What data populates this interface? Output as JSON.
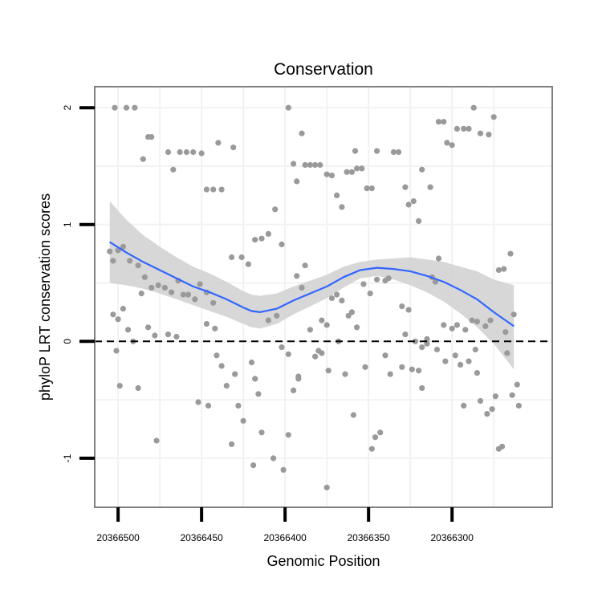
{
  "chart_data": {
    "type": "scatter",
    "title": "Conservation",
    "xlabel": "Genomic Position",
    "ylabel": "phyloP LRT conservation scores",
    "x_reversed": true,
    "xlim": [
      20366514,
      20366240
    ],
    "ylim": [
      -1.42,
      2.18
    ],
    "x_ticks": [
      20366500,
      20366450,
      20366400,
      20366350,
      20366300
    ],
    "x_tick_labels": [
      "20366500",
      "20366450",
      "20366400",
      "20366350",
      "20366300"
    ],
    "y_ticks": [
      -1,
      0,
      1,
      2
    ],
    "y_tick_labels": [
      "-1",
      "0",
      "1",
      "2"
    ],
    "reference_line": {
      "y": 0,
      "style": "dashed",
      "color": "#000000"
    },
    "grid": true,
    "colors": {
      "points": "#9a9a9a",
      "smooth_line": "#3366ff",
      "ribbon": "#d3d3d3",
      "panel_border": "#808080",
      "grid": "#f2f2f2"
    },
    "series": [
      {
        "kind": "points",
        "points": [
          [
            20366505,
            0.77
          ],
          [
            20366503,
            0.69
          ],
          [
            20366500,
            0.78
          ],
          [
            20366497,
            0.81
          ],
          [
            20366493,
            0.69
          ],
          [
            20366488,
            0.65
          ],
          [
            20366484,
            0.55
          ],
          [
            20366480,
            0.46
          ],
          [
            20366476,
            0.48
          ],
          [
            20366472,
            0.46
          ],
          [
            20366468,
            0.42
          ],
          [
            20366464,
            0.52
          ],
          [
            20366461,
            0.4
          ],
          [
            20366458,
            0.4
          ],
          [
            20366454,
            0.36
          ],
          [
            20366451,
            0.49
          ],
          [
            20366447,
            0.42
          ],
          [
            20366443,
            0.33
          ],
          [
            20366503,
            0.23
          ],
          [
            20366500,
            0.19
          ],
          [
            20366497,
            0.28
          ],
          [
            20366494,
            0.1
          ],
          [
            20366491,
            0.0
          ],
          [
            20366486,
            0.41
          ],
          [
            20366482,
            0.12
          ],
          [
            20366478,
            0.05
          ],
          [
            20366470,
            0.06
          ],
          [
            20366465,
            0.04
          ],
          [
            20366447,
            0.15
          ],
          [
            20366442,
            0.11
          ],
          [
            20366501,
            -0.08
          ],
          [
            20366499,
            -0.38
          ],
          [
            20366488,
            -0.4
          ],
          [
            20366477,
            -0.85
          ],
          [
            20366452,
            -0.52
          ],
          [
            20366446,
            -0.55
          ],
          [
            20366441,
            -0.12
          ],
          [
            20366438,
            -0.21
          ],
          [
            20366435,
            -0.38
          ],
          [
            20366432,
            -0.88
          ],
          [
            20366430,
            -0.28
          ],
          [
            20366428,
            -0.55
          ],
          [
            20366425,
            -0.68
          ],
          [
            20366420,
            -0.18
          ],
          [
            20366418,
            -0.32
          ],
          [
            20366416,
            -0.45
          ],
          [
            20366502,
            2.0
          ],
          [
            20366495,
            2.0
          ],
          [
            20366490,
            2.0
          ],
          [
            20366485,
            1.56
          ],
          [
            20366482,
            1.75
          ],
          [
            20366480,
            1.75
          ],
          [
            20366470,
            1.62
          ],
          [
            20366467,
            1.47
          ],
          [
            20366463,
            1.62
          ],
          [
            20366459,
            1.62
          ],
          [
            20366455,
            1.62
          ],
          [
            20366450,
            1.61
          ],
          [
            20366447,
            1.3
          ],
          [
            20366443,
            1.3
          ],
          [
            20366440,
            1.7
          ],
          [
            20366438,
            1.3
          ],
          [
            20366431,
            1.66
          ],
          [
            20366432,
            0.72
          ],
          [
            20366426,
            0.72
          ],
          [
            20366422,
            0.66
          ],
          [
            20366418,
            0.87
          ],
          [
            20366414,
            0.88
          ],
          [
            20366410,
            0.92
          ],
          [
            20366406,
            1.13
          ],
          [
            20366402,
            0.83
          ],
          [
            20366410,
            0.18
          ],
          [
            20366405,
            0.22
          ],
          [
            20366402,
            -0.05
          ],
          [
            20366398,
            -0.11
          ],
          [
            20366414,
            -0.78
          ],
          [
            20366419,
            -1.06
          ],
          [
            20366407,
            -1.0
          ],
          [
            20366401,
            -1.1
          ],
          [
            20366398,
            -0.8
          ],
          [
            20366395,
            -0.42
          ],
          [
            20366392,
            -0.32
          ],
          [
            20366398,
            2.0
          ],
          [
            20366395,
            1.52
          ],
          [
            20366393,
            1.37
          ],
          [
            20366390,
            1.78
          ],
          [
            20366388,
            1.51
          ],
          [
            20366385,
            1.51
          ],
          [
            20366382,
            1.51
          ],
          [
            20366379,
            1.51
          ],
          [
            20366375,
            1.43
          ],
          [
            20366372,
            1.42
          ],
          [
            20366369,
            1.25
          ],
          [
            20366366,
            1.15
          ],
          [
            20366363,
            1.45
          ],
          [
            20366360,
            1.45
          ],
          [
            20366357,
            1.48
          ],
          [
            20366354,
            1.48
          ],
          [
            20366351,
            1.31
          ],
          [
            20366348,
            1.31
          ],
          [
            20366345,
            1.63
          ],
          [
            20366358,
            1.63
          ],
          [
            20366390,
            0.46
          ],
          [
            20366393,
            0.56
          ],
          [
            20366388,
            0.65
          ],
          [
            20366385,
            0.1
          ],
          [
            20366380,
            -0.08
          ],
          [
            20366378,
            0.18
          ],
          [
            20366375,
            0.14
          ],
          [
            20366372,
            0.37
          ],
          [
            20366369,
            0.4
          ],
          [
            20366366,
            0.35
          ],
          [
            20366362,
            0.22
          ],
          [
            20366360,
            0.25
          ],
          [
            20366357,
            0.12
          ],
          [
            20366353,
            0.49
          ],
          [
            20366349,
            0.41
          ],
          [
            20366345,
            0.53
          ],
          [
            20366340,
            0.52
          ],
          [
            20366338,
            0.54
          ],
          [
            20366392,
            -0.3
          ],
          [
            20366382,
            -0.13
          ],
          [
            20366378,
            -0.1
          ],
          [
            20366374,
            -0.25
          ],
          [
            20366368,
            0.0
          ],
          [
            20366364,
            -0.28
          ],
          [
            20366359,
            -0.63
          ],
          [
            20366352,
            -0.22
          ],
          [
            20366348,
            -0.92
          ],
          [
            20366346,
            -0.82
          ],
          [
            20366343,
            -0.78
          ],
          [
            20366340,
            -0.12
          ],
          [
            20366337,
            -0.28
          ],
          [
            20366330,
            -0.22
          ],
          [
            20366324,
            -0.24
          ],
          [
            20366375,
            -1.25
          ],
          [
            20366335,
            1.62
          ],
          [
            20366332,
            1.62
          ],
          [
            20366328,
            1.32
          ],
          [
            20366326,
            1.17
          ],
          [
            20366323,
            1.2
          ],
          [
            20366320,
            1.03
          ],
          [
            20366318,
            1.47
          ],
          [
            20366313,
            1.32
          ],
          [
            20366308,
            1.88
          ],
          [
            20366305,
            1.88
          ],
          [
            20366303,
            1.7
          ],
          [
            20366300,
            1.68
          ],
          [
            20366297,
            1.82
          ],
          [
            20366293,
            1.82
          ],
          [
            20366290,
            1.82
          ],
          [
            20366287,
            2.0
          ],
          [
            20366283,
            1.78
          ],
          [
            20366278,
            1.77
          ],
          [
            20366275,
            1.92
          ],
          [
            20366330,
            0.3
          ],
          [
            20366328,
            0.06
          ],
          [
            20366326,
            0.27
          ],
          [
            20366322,
            0.0
          ],
          [
            20366318,
            -0.05
          ],
          [
            20366315,
            0.02
          ],
          [
            20366312,
            0.55
          ],
          [
            20366310,
            0.51
          ],
          [
            20366308,
            0.71
          ],
          [
            20366305,
            0.14
          ],
          [
            20366300,
            0.11
          ],
          [
            20366297,
            0.14
          ],
          [
            20366292,
            0.1
          ],
          [
            20366288,
            0.18
          ],
          [
            20366285,
            0.17
          ],
          [
            20366280,
            0.13
          ],
          [
            20366277,
            0.18
          ],
          [
            20366272,
            0.61
          ],
          [
            20366269,
            0.62
          ],
          [
            20366265,
            0.75
          ],
          [
            20366263,
            0.23
          ],
          [
            20366320,
            -0.25
          ],
          [
            20366318,
            -0.4
          ],
          [
            20366315,
            -0.02
          ],
          [
            20366309,
            -0.07
          ],
          [
            20366304,
            -0.17
          ],
          [
            20366298,
            -0.12
          ],
          [
            20366295,
            -0.2
          ],
          [
            20366293,
            -0.55
          ],
          [
            20366290,
            -0.17
          ],
          [
            20366286,
            -0.07
          ],
          [
            20366283,
            -0.51
          ],
          [
            20366279,
            -0.62
          ],
          [
            20366276,
            -0.58
          ],
          [
            20366274,
            -0.47
          ],
          [
            20366270,
            -0.9
          ],
          [
            20366267,
            -0.1
          ],
          [
            20366264,
            -0.46
          ],
          [
            20366261,
            -0.37
          ],
          [
            20366260,
            -0.55
          ],
          [
            20366272,
            -0.92
          ],
          [
            20366285,
            -0.27
          ],
          [
            20366268,
            0.08
          ]
        ]
      },
      {
        "kind": "smooth",
        "x": [
          20366505,
          20366495,
          20366485,
          20366475,
          20366465,
          20366455,
          20366445,
          20366435,
          20366425,
          20366420,
          20366415,
          20366405,
          20366395,
          20366385,
          20366375,
          20366365,
          20366355,
          20366345,
          20366335,
          20366325,
          20366315,
          20366305,
          20366295,
          20366285,
          20366275,
          20366263
        ],
        "fit": [
          0.85,
          0.76,
          0.68,
          0.61,
          0.54,
          0.47,
          0.42,
          0.36,
          0.29,
          0.26,
          0.25,
          0.28,
          0.35,
          0.41,
          0.47,
          0.55,
          0.61,
          0.63,
          0.62,
          0.6,
          0.56,
          0.51,
          0.44,
          0.36,
          0.25,
          0.13
        ],
        "lower": [
          0.5,
          0.48,
          0.45,
          0.41,
          0.36,
          0.31,
          0.26,
          0.21,
          0.15,
          0.12,
          0.11,
          0.15,
          0.23,
          0.3,
          0.37,
          0.46,
          0.54,
          0.56,
          0.53,
          0.48,
          0.42,
          0.34,
          0.24,
          0.12,
          -0.02,
          -0.24
        ],
        "upper": [
          1.2,
          1.04,
          0.91,
          0.81,
          0.72,
          0.64,
          0.58,
          0.51,
          0.43,
          0.4,
          0.39,
          0.41,
          0.47,
          0.52,
          0.57,
          0.64,
          0.68,
          0.7,
          0.71,
          0.72,
          0.7,
          0.68,
          0.64,
          0.6,
          0.53,
          0.48
        ]
      }
    ]
  }
}
